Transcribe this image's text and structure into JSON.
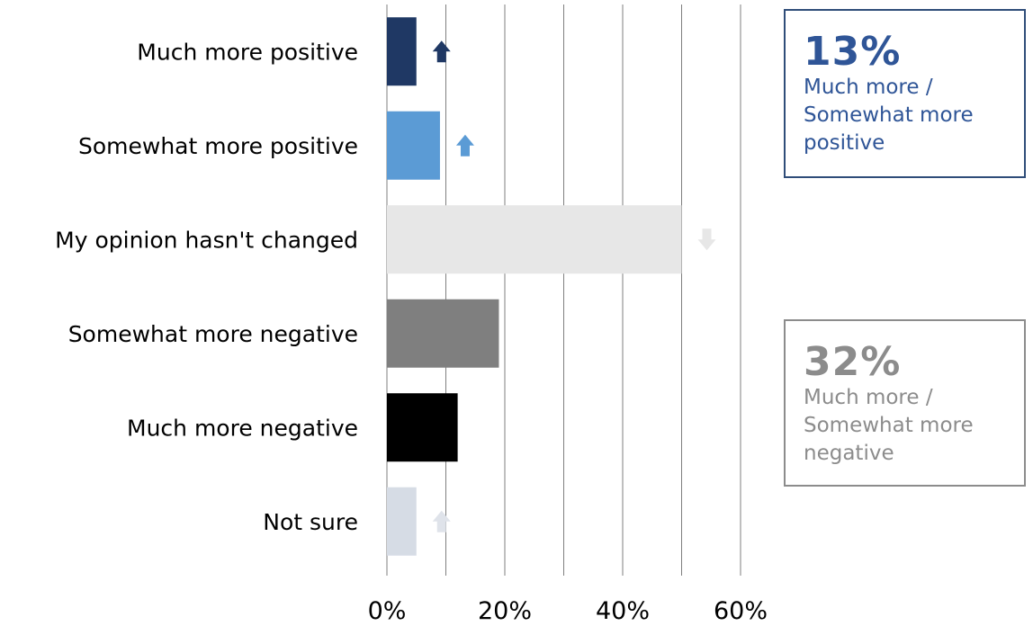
{
  "chart_data": {
    "type": "bar",
    "orientation": "horizontal",
    "categories": [
      "Much more positive",
      "Somewhat more positive",
      "My opinion hasn't changed",
      "Somewhat more negative",
      "Much more negative",
      "Not sure"
    ],
    "values": [
      5,
      9,
      50,
      19,
      12,
      5
    ],
    "colors": [
      "#1f3864",
      "#5b9bd5",
      "#e7e7e7",
      "#7f7f7f",
      "#000000",
      "#d6dce5"
    ],
    "trend": [
      "up",
      "up",
      "down",
      "none",
      "none",
      "up"
    ],
    "trend_colors": [
      "#1f3864",
      "#5b9bd5",
      "#e7e7e7",
      "",
      "",
      "#dfe3ea"
    ],
    "xlim": [
      0,
      60
    ],
    "x_ticks": [
      0,
      20,
      40,
      60
    ],
    "x_tick_labels": [
      "0%",
      "20%",
      "40%",
      "60%"
    ],
    "grid": true
  },
  "callouts": {
    "positive": {
      "value": "13%",
      "text": "Much more / Somewhat more positive",
      "color": "#2f5597",
      "border": "#2f4d79"
    },
    "negative": {
      "value": "32%",
      "text": "Much more / Somewhat more negative",
      "color": "#8c8c8c",
      "border": "#8c8c8c"
    }
  }
}
